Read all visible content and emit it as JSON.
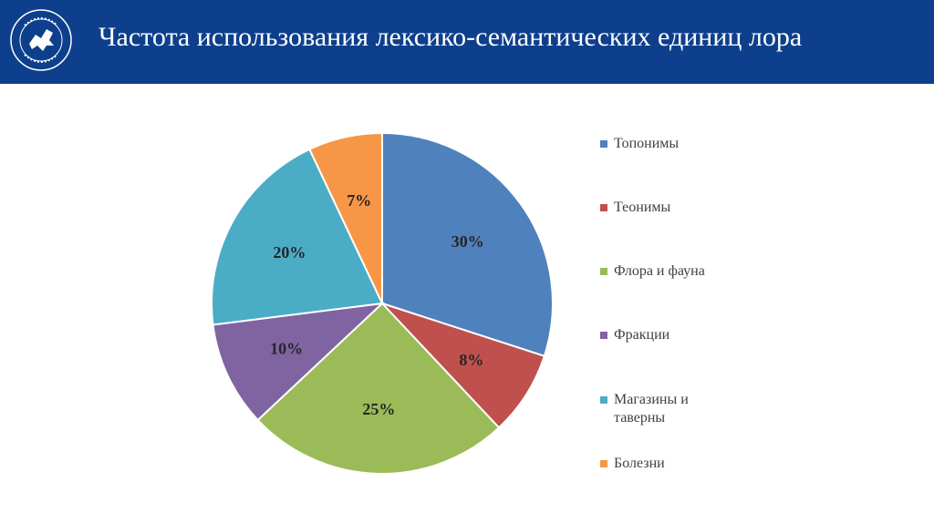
{
  "header": {
    "title": "Частота использования лексико-семантических единиц лора",
    "logo": {
      "icon": "university-crest-icon",
      "text_top": "КАЗАНСКИЙ ФЕДЕРАЛЬНЫЙ",
      "text_bottom": "УНИВЕРСИТЕТ",
      "year": "1804"
    }
  },
  "colors": {
    "header_bg": "#0d3f8c",
    "slice_colors": [
      "#4f81bd",
      "#c0504d",
      "#9bbb59",
      "#8064a2",
      "#4bacc6",
      "#f79646"
    ]
  },
  "chart_data": {
    "type": "pie",
    "title": "",
    "categories": [
      "Топонимы",
      "Теонимы",
      "Флора и фауна",
      "Фракции",
      "Магазины и таверны",
      "Болезни"
    ],
    "values": [
      30,
      8,
      25,
      10,
      20,
      7
    ],
    "labels": [
      "30%",
      "8%",
      "25%",
      "10%",
      "20%",
      "7%"
    ],
    "colors": [
      "#4f81bd",
      "#c0504d",
      "#9bbb59",
      "#8064a2",
      "#4bacc6",
      "#f79646"
    ],
    "legend_position": "right"
  }
}
